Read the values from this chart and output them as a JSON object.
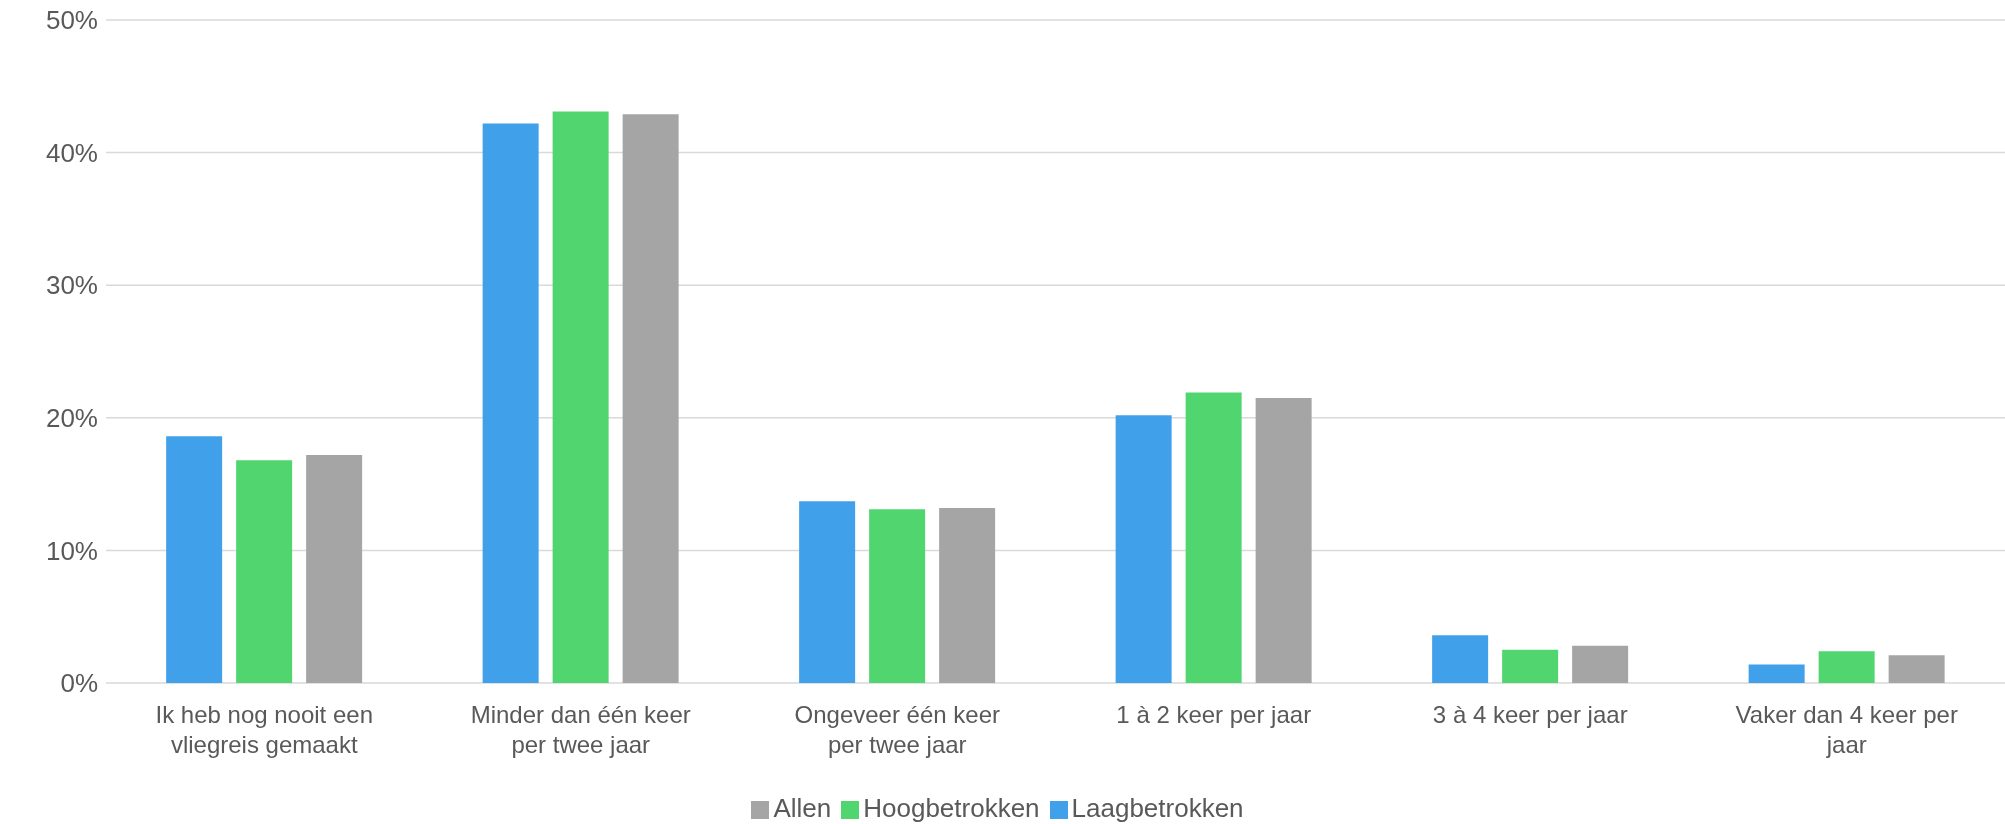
{
  "chart_data": {
    "type": "bar",
    "categories": [
      "Ik heb nog nooit een vliegreis gemaakt",
      "Minder dan één keer per twee jaar",
      "Ongeveer één keer per twee jaar",
      "1 à 2 keer per jaar",
      "3 à 4 keer per jaar",
      "Vaker dan 4 keer per jaar"
    ],
    "series": [
      {
        "name": "Laagbetrokken",
        "color": "#41a0ea",
        "values": [
          18.6,
          42.2,
          13.7,
          20.2,
          3.6,
          1.4
        ]
      },
      {
        "name": "Hoogbetrokken",
        "color": "#50d56f",
        "values": [
          16.8,
          43.1,
          13.1,
          21.9,
          2.5,
          2.4
        ]
      },
      {
        "name": "Allen",
        "color": "#a5a5a5",
        "values": [
          17.2,
          42.9,
          13.2,
          21.5,
          2.8,
          2.1
        ]
      }
    ],
    "ylim": [
      0,
      50
    ],
    "yticks": [
      {
        "value": 0,
        "label": "0%"
      },
      {
        "value": 10,
        "label": "10%"
      },
      {
        "value": 20,
        "label": "20%"
      },
      {
        "value": 30,
        "label": "30%"
      },
      {
        "value": 40,
        "label": "40%"
      },
      {
        "value": 50,
        "label": "50%"
      }
    ],
    "grid": "y",
    "legend": "bottom"
  }
}
